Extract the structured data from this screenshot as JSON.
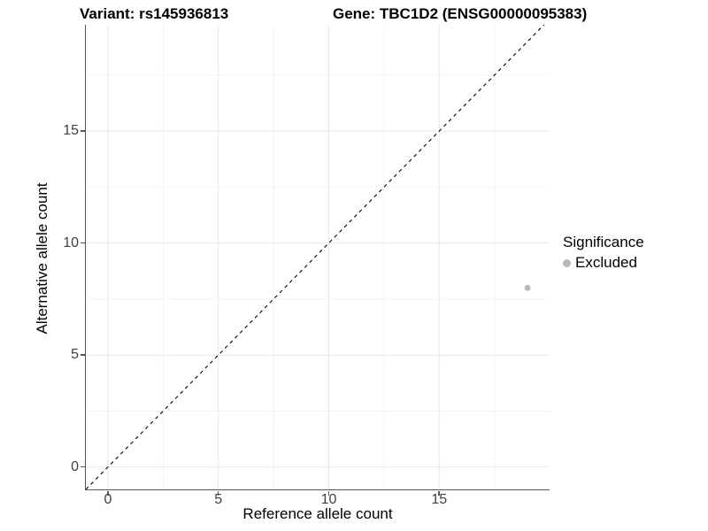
{
  "chart_data": {
    "type": "scatter",
    "titles": {
      "left": "Variant: rs145936813",
      "right": "Gene: TBC1D2 (ENSG00000095383)"
    },
    "xlabel": "Reference allele count",
    "ylabel": "Alternative allele count",
    "xlim": [
      -1,
      20
    ],
    "ylim": [
      -1,
      19.75
    ],
    "xticks": [
      0,
      5,
      10,
      15
    ],
    "yticks": [
      0,
      5,
      10,
      15
    ],
    "xminor": [
      2.5,
      7.5,
      12.5,
      17.5
    ],
    "yminor": [
      2.5,
      7.5,
      12.5,
      17.5
    ],
    "grid": true,
    "points": [
      {
        "x": 19,
        "y": 8,
        "series": "Excluded"
      }
    ],
    "reference_line": {
      "kind": "abline",
      "slope": 1,
      "intercept": 0,
      "linetype": "dashed",
      "color": "#000000"
    },
    "legend": {
      "title": "Significance",
      "position": "right",
      "entries": [
        {
          "label": "Excluded",
          "color": "#b9b9b9"
        }
      ]
    },
    "colors": {
      "point": "#b9b9b9",
      "grid_major": "#e7e7e7",
      "grid_minor": "#f4f4f4",
      "axis_line": "#565656",
      "tick_text": "#404040"
    }
  }
}
